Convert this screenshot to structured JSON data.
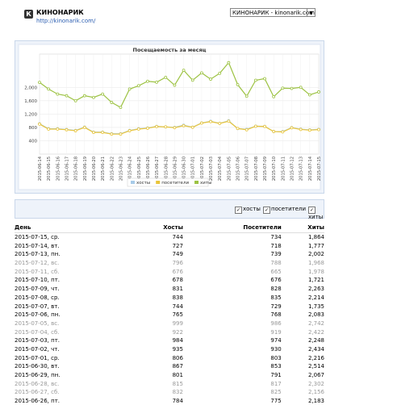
{
  "header": {
    "logo": "К",
    "title": "КИНОНАРИК",
    "url": "http://kinonarik.com/",
    "site_select": "КИНОНАРИК - kinonarik.com"
  },
  "chart_data": {
    "type": "line",
    "title": "Посещаемость за месяц",
    "categories": [
      "2015-06-14",
      "2015-06-15",
      "2015-06-16",
      "2015-06-17",
      "2015-06-18",
      "2015-06-19",
      "2015-06-20",
      "2015-06-21",
      "2015-06-22",
      "2015-06-23",
      "2015-06-24",
      "2015-06-25",
      "2015-06-26",
      "2015-06-27",
      "2015-06-28",
      "2015-06-29",
      "2015-06-30",
      "2015-07-01",
      "2015-07-02",
      "2015-07-03",
      "2015-07-04",
      "2015-07-05",
      "2015-07-06",
      "2015-07-07",
      "2015-07-08",
      "2015-07-09",
      "2015-07-10",
      "2015-07-11",
      "2015-07-12",
      "2015-07-13",
      "2015-07-14",
      "2015-07-15"
    ],
    "series": [
      {
        "name": "хосты",
        "color": "#a8cbe8",
        "values": [
          910,
          760,
          760,
          740,
          710,
          810,
          660,
          660,
          610,
          610,
          710,
          760,
          784,
          832,
          815,
          801,
          867,
          806,
          935,
          984,
          922,
          999,
          765,
          744,
          838,
          831,
          678,
          676,
          796,
          749,
          727,
          744
        ]
      },
      {
        "name": "посетители",
        "color": "#e9c53a",
        "values": [
          900,
          750,
          750,
          730,
          700,
          800,
          650,
          650,
          600,
          600,
          700,
          750,
          775,
          825,
          817,
          791,
          853,
          803,
          930,
          974,
          919,
          986,
          768,
          729,
          835,
          828,
          676,
          665,
          788,
          739,
          718,
          734
        ]
      },
      {
        "name": "хиты",
        "color": "#9cc242",
        "values": [
          2150,
          1950,
          1800,
          1750,
          1600,
          1750,
          1700,
          1800,
          1550,
          1400,
          1950,
          2050,
          2183,
          2156,
          2302,
          2067,
          2514,
          2216,
          2434,
          2248,
          2422,
          2742,
          2083,
          1735,
          2214,
          2263,
          1721,
          1978,
          1968,
          2002,
          1777,
          1864
        ]
      }
    ],
    "ylim": [
      0,
      3000
    ],
    "yticks": [
      400,
      800,
      {
        "value": 1200,
        "label": "1,200"
      },
      {
        "value": 1600,
        "label": "1,600"
      },
      {
        "value": 2000,
        "label": "2,000"
      }
    ],
    "grid": true
  },
  "filters": [
    "хосты",
    "посетители",
    "хиты"
  ],
  "table": {
    "columns": [
      "День",
      "Хосты",
      "Посетители",
      "Хиты"
    ],
    "rows": [
      [
        "2015-07-15, ср.",
        "744",
        "734",
        "1,864"
      ],
      [
        "2015-07-14, вт.",
        "727",
        "718",
        "1,777"
      ],
      [
        "2015-07-13, пн.",
        "749",
        "739",
        "2,002"
      ],
      [
        "2015-07-12, вс.",
        "796",
        "788",
        "1,968"
      ],
      [
        "2015-07-11, сб.",
        "676",
        "665",
        "1,978"
      ],
      [
        "2015-07-10, пт.",
        "678",
        "676",
        "1,721"
      ],
      [
        "2015-07-09, чт.",
        "831",
        "828",
        "2,263"
      ],
      [
        "2015-07-08, ср.",
        "838",
        "835",
        "2,214"
      ],
      [
        "2015-07-07, вт.",
        "744",
        "729",
        "1,735"
      ],
      [
        "2015-07-06, пн.",
        "765",
        "768",
        "2,083"
      ],
      [
        "2015-07-05, вс.",
        "999",
        "986",
        "2,742"
      ],
      [
        "2015-07-04, сб.",
        "922",
        "919",
        "2,422"
      ],
      [
        "2015-07-03, пт.",
        "984",
        "974",
        "2,248"
      ],
      [
        "2015-07-02, чт.",
        "935",
        "930",
        "2,434"
      ],
      [
        "2015-07-01, ср.",
        "806",
        "803",
        "2,216"
      ],
      [
        "2015-06-30, вт.",
        "867",
        "853",
        "2,514"
      ],
      [
        "2015-06-29, пн.",
        "801",
        "791",
        "2,067"
      ],
      [
        "2015-06-28, вс.",
        "815",
        "817",
        "2,302"
      ],
      [
        "2015-06-27, сб.",
        "832",
        "825",
        "2,156"
      ],
      [
        "2015-06-26, пт.",
        "784",
        "775",
        "2,183"
      ]
    ]
  }
}
